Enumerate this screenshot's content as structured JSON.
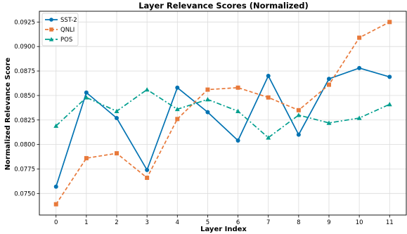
{
  "chart_data": {
    "type": "line",
    "title": "Layer Relevance Scores (Normalized)",
    "xlabel": "Layer Index",
    "ylabel": "Normalized Relevance Score",
    "x": [
      0,
      1,
      2,
      3,
      4,
      5,
      6,
      7,
      8,
      9,
      10,
      11
    ],
    "xlim": [
      -0.55,
      11.55
    ],
    "ylim": [
      0.0728,
      0.0936
    ],
    "yticks": [
      0.075,
      0.0775,
      0.08,
      0.0825,
      0.085,
      0.0875,
      0.09,
      0.0925
    ],
    "ytick_labels": [
      "0.0750",
      "0.0775",
      "0.0800",
      "0.0825",
      "0.0850",
      "0.0875",
      "0.0900",
      "0.0925"
    ],
    "xtick_labels": [
      "0",
      "1",
      "2",
      "3",
      "4",
      "5",
      "6",
      "7",
      "8",
      "9",
      "10",
      "11"
    ],
    "grid": true,
    "legend_position": "top-left",
    "series": [
      {
        "name": "SST-2",
        "color": "#0072B2",
        "linestyle": "solid",
        "marker": "circle",
        "values": [
          0.0757,
          0.0853,
          0.0827,
          0.0774,
          0.0858,
          0.0833,
          0.0804,
          0.087,
          0.081,
          0.0867,
          0.0878,
          0.0869
        ]
      },
      {
        "name": "QNLI",
        "color": "#E8793A",
        "linestyle": "dashed",
        "marker": "square",
        "values": [
          0.0739,
          0.0786,
          0.0791,
          0.0766,
          0.0826,
          0.0856,
          0.0858,
          0.0848,
          0.0835,
          0.0861,
          0.0909,
          0.0925
        ]
      },
      {
        "name": "POS",
        "color": "#009E8E",
        "linestyle": "dashdot",
        "marker": "triangle",
        "values": [
          0.0819,
          0.0848,
          0.0834,
          0.0856,
          0.0836,
          0.0846,
          0.0834,
          0.0807,
          0.083,
          0.0822,
          0.0827,
          0.0841
        ]
      }
    ]
  }
}
